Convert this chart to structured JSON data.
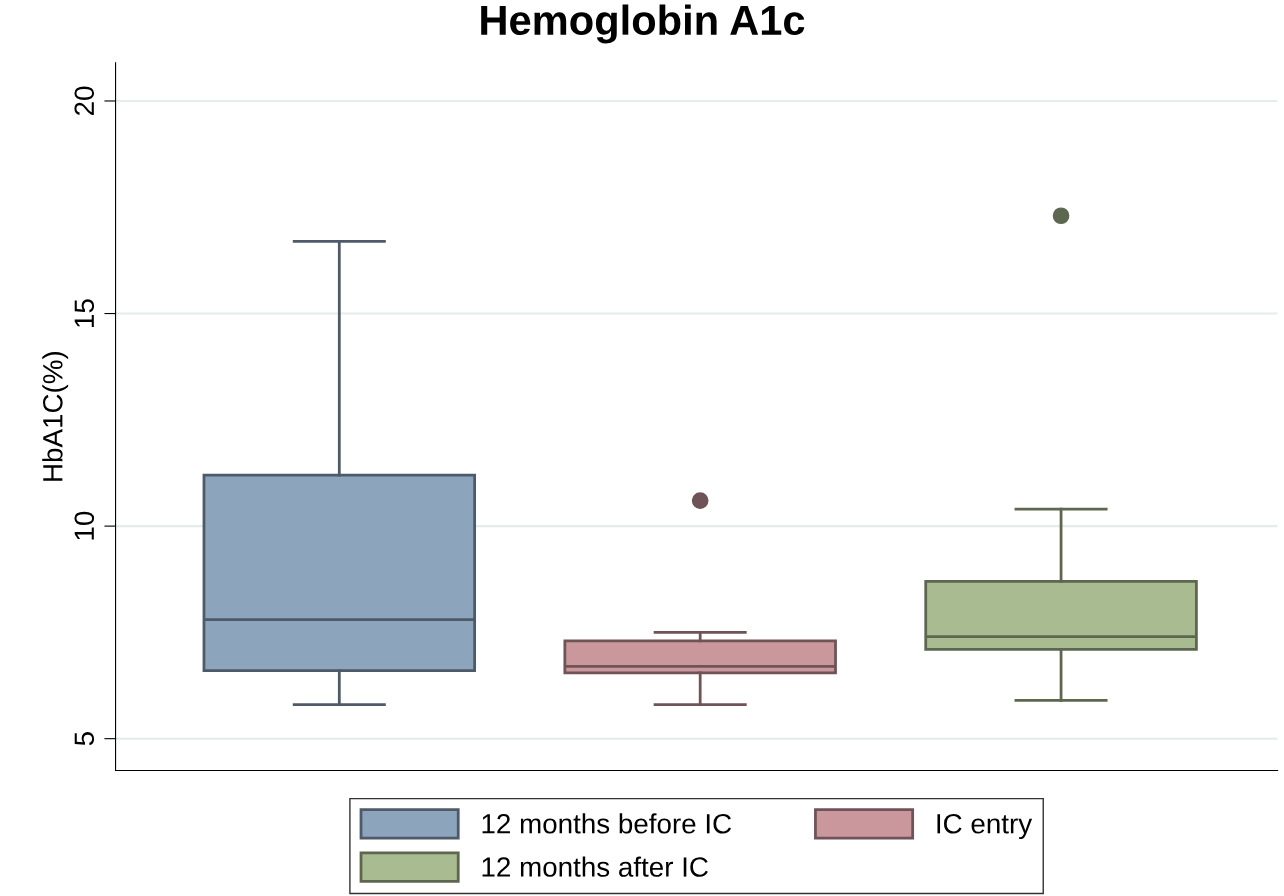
{
  "chart_data": {
    "type": "box",
    "title": "Hemoglobin A1c",
    "ylabel": "HbA1C(%)",
    "categories": [
      null,
      null,
      null
    ],
    "series": [
      {
        "name": "12 months before IC",
        "color": "#8da4bd",
        "boxes": [
          {
            "low": 5.8,
            "q1": 6.6,
            "median": 7.8,
            "q3": 11.2,
            "high": 16.7
          },
          null,
          null
        ]
      },
      {
        "name": "IC entry",
        "color": "#c9979c",
        "boxes": [
          null,
          {
            "low": 5.8,
            "q1": 6.55,
            "median": 6.7,
            "q3": 7.3,
            "high": 7.5,
            "outliers": [
              10.6
            ]
          },
          null
        ]
      },
      {
        "name": "12 months after IC",
        "color": "#a9bb91",
        "boxes": [
          null,
          null,
          {
            "low": 5.9,
            "q1": 7.1,
            "median": 7.4,
            "q3": 8.7,
            "high": 10.4,
            "outliers": [
              17.3
            ]
          }
        ]
      }
    ],
    "ylim": [
      4.25,
      20.9
    ],
    "yticks": [
      5,
      10,
      15,
      20
    ],
    "grid": "y",
    "legend": "bottom"
  }
}
